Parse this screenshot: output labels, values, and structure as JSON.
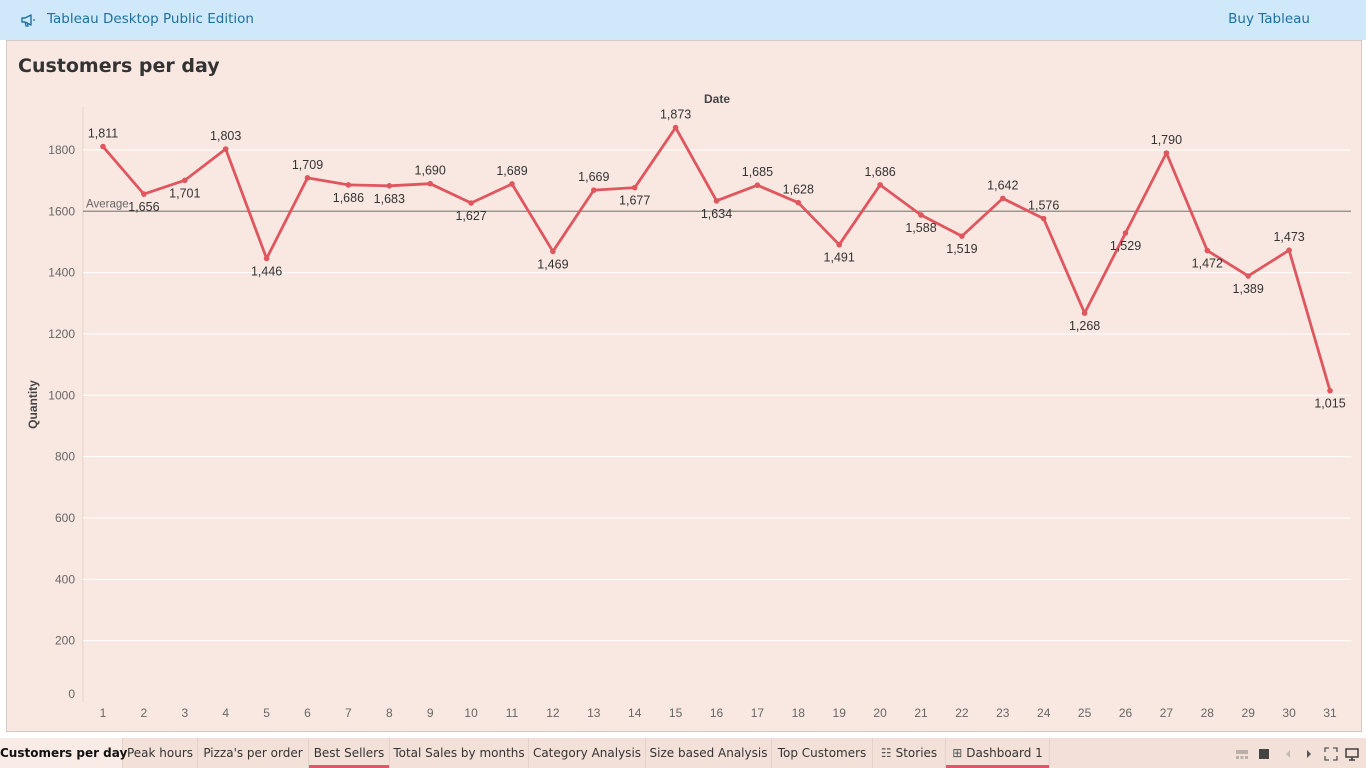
{
  "topbar": {
    "app_title": "Tableau Desktop Public Edition",
    "buy_label": "Buy Tableau",
    "megaphone_icon": "megaphone-icon",
    "background": "#cfe9fb",
    "text_color": "#1f6fa0"
  },
  "sheet": {
    "title": "Customers per day",
    "background": "#f9e8e1"
  },
  "chart_data": {
    "type": "line",
    "title": "",
    "column_header": "Date",
    "xlabel": "",
    "ylabel": "Quantity",
    "x": [
      1,
      2,
      3,
      4,
      5,
      6,
      7,
      8,
      9,
      10,
      11,
      12,
      13,
      14,
      15,
      16,
      17,
      18,
      19,
      20,
      21,
      22,
      23,
      24,
      25,
      26,
      27,
      28,
      29,
      30,
      31
    ],
    "values": [
      1811,
      1656,
      1701,
      1803,
      1446,
      1709,
      1686,
      1683,
      1690,
      1627,
      1689,
      1469,
      1669,
      1677,
      1873,
      1634,
      1685,
      1628,
      1491,
      1686,
      1588,
      1519,
      1642,
      1576,
      1268,
      1529,
      1790,
      1472,
      1389,
      1473,
      1015
    ],
    "data_labels": [
      "1,811",
      "1,656",
      "1,701",
      "1,803",
      "1,446",
      "1,709",
      "1,686",
      "1,683",
      "1,690",
      "1,627",
      "1,689",
      "1,469",
      "1,669",
      "1,677",
      "1,873",
      "1,634",
      "1,685",
      "1,628",
      "1,491",
      "1,686",
      "1,588",
      "1,519",
      "1,642",
      "1,576",
      "1,268",
      "1,529",
      "1,790",
      "1,472",
      "1,389",
      "1,473",
      "1,015"
    ],
    "label_position": [
      "above",
      "below",
      "below",
      "above",
      "below",
      "above",
      "below",
      "below",
      "above",
      "below",
      "above",
      "below",
      "above",
      "below",
      "above",
      "below",
      "above",
      "above",
      "below",
      "above",
      "below",
      "below",
      "above",
      "above",
      "below",
      "below",
      "above",
      "below",
      "below",
      "above",
      "below"
    ],
    "yticks": [
      0,
      200,
      400,
      600,
      800,
      1000,
      1200,
      1400,
      1600,
      1800
    ],
    "ylim": [
      0,
      1940
    ],
    "reference_line": {
      "label": "Average",
      "value": 1600
    },
    "line_color": "#e0565f",
    "grid": true
  },
  "tabs": [
    {
      "label": "Customers per day",
      "active": true,
      "underline": false,
      "icon": ""
    },
    {
      "label": "Peak hours",
      "active": false,
      "underline": false,
      "icon": ""
    },
    {
      "label": "Pizza's per order",
      "active": false,
      "underline": false,
      "icon": ""
    },
    {
      "label": "Best Sellers",
      "active": false,
      "underline": true,
      "icon": ""
    },
    {
      "label": "Total Sales by months",
      "active": false,
      "underline": false,
      "icon": ""
    },
    {
      "label": "Category Analysis",
      "active": false,
      "underline": false,
      "icon": ""
    },
    {
      "label": "Size based Analysis",
      "active": false,
      "underline": false,
      "icon": ""
    },
    {
      "label": "Top Customers",
      "active": false,
      "underline": false,
      "icon": ""
    },
    {
      "label": "Stories",
      "active": false,
      "underline": false,
      "icon": "book-icon"
    },
    {
      "label": "Dashboard 1",
      "active": false,
      "underline": true,
      "icon": "dashboard-icon"
    }
  ],
  "tab_accent": "#e0566a",
  "nav_controls": [
    "filmstrip-view-icon",
    "tabs-view-icon",
    "previous-sheet-icon",
    "next-sheet-icon",
    "fullscreen-icon",
    "present-icon"
  ]
}
